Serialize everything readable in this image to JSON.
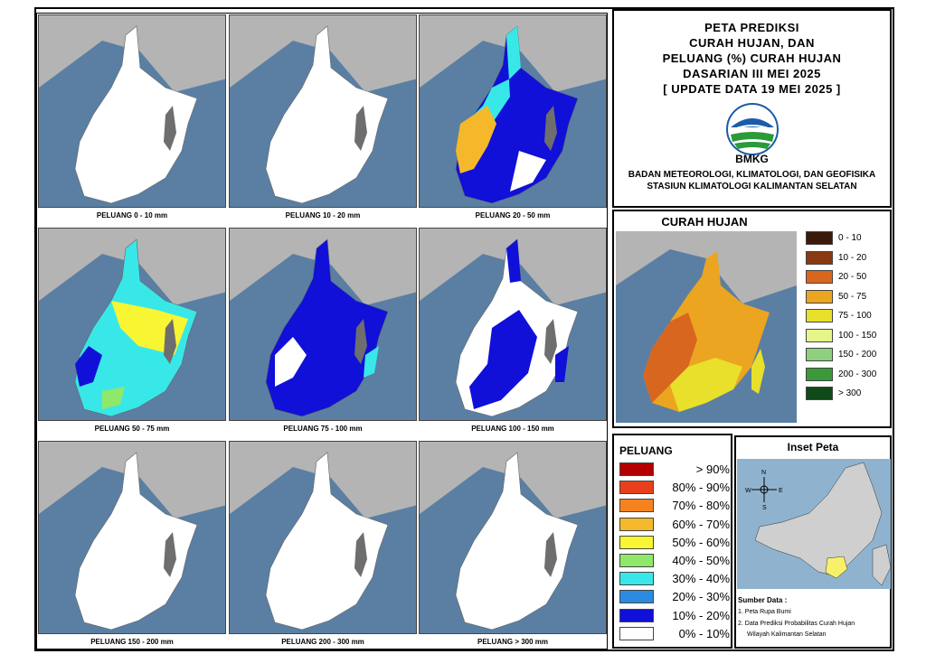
{
  "title": {
    "line1": "PETA PREDIKSI",
    "line2": "CURAH HUJAN, DAN",
    "line3": "PELUANG (%) CURAH HUJAN",
    "line4": "DASARIAN III MEI 2025",
    "line5": "[ UPDATE DATA 19 MEI 2025 ]",
    "logo_text": "BMKG",
    "org1": "BADAN METEOROLOGI, KLIMATOLOGI, DAN GEOFISIKA",
    "org2": "STASIUN KLIMATOLOGI KALIMANTAN SELATAN"
  },
  "panels": [
    {
      "label": "PELUANG 0 - 10 mm",
      "fill": "white"
    },
    {
      "label": "PELUANG 10 - 20 mm",
      "fill": "white"
    },
    {
      "label": "PELUANG 20 - 50 mm",
      "fill": "mixed-high"
    },
    {
      "label": "PELUANG 50 - 75 mm",
      "fill": "mixed-mid"
    },
    {
      "label": "PELUANG 75 - 100 mm",
      "fill": "blue"
    },
    {
      "label": "PELUANG 100 - 150 mm",
      "fill": "blue-partial"
    },
    {
      "label": "PELUANG 150 - 200 mm",
      "fill": "white"
    },
    {
      "label": "PELUANG 200 - 300 mm",
      "fill": "white"
    },
    {
      "label": "PELUANG > 300 mm",
      "fill": "white"
    }
  ],
  "curah_hujan": {
    "title": "CURAH HUJAN",
    "items": [
      {
        "label": "0 - 10",
        "color": "#3b1a0c"
      },
      {
        "label": "10 - 20",
        "color": "#8a3a12"
      },
      {
        "label": "20 - 50",
        "color": "#d9661f"
      },
      {
        "label": "50 - 75",
        "color": "#eba521"
      },
      {
        "label": "75 - 100",
        "color": "#e8e02a"
      },
      {
        "label": "100 - 150",
        "color": "#e6f58a"
      },
      {
        "label": "150 - 200",
        "color": "#8fcf80"
      },
      {
        "label": "200 - 300",
        "color": "#3a9a3a"
      },
      {
        "label": "> 300",
        "color": "#0f4a18"
      }
    ]
  },
  "peluang": {
    "title": "PELUANG",
    "items": [
      {
        "label": "> 90%",
        "color": "#b30000"
      },
      {
        "label": "80% - 90%",
        "color": "#e8401c"
      },
      {
        "label": "70% - 80%",
        "color": "#f5821f"
      },
      {
        "label": "60% - 70%",
        "color": "#f5b82a"
      },
      {
        "label": "50% - 60%",
        "color": "#f8f532"
      },
      {
        "label": "40% - 50%",
        "color": "#8fe86a"
      },
      {
        "label": "30% - 40%",
        "color": "#38e8e8"
      },
      {
        "label": "20% - 30%",
        "color": "#2a8be0"
      },
      {
        "label": "10% - 20%",
        "color": "#1010d8"
      },
      {
        "label": "0% - 10%",
        "color": "#ffffff"
      }
    ]
  },
  "inset": {
    "title": "Inset Peta",
    "sumber_title": "Sumber Data :",
    "sumber1": "1. Peta Rupa Bumi",
    "sumber2": "2. Data Prediksi Probabilitas Curah Hujan",
    "sumber3": "Wilayah Kalimantan Selatan",
    "compass": [
      "N",
      "E",
      "S",
      "W"
    ]
  },
  "colors": {
    "sea": "#5a7fa3",
    "land_gray": "#b4b4b4"
  }
}
